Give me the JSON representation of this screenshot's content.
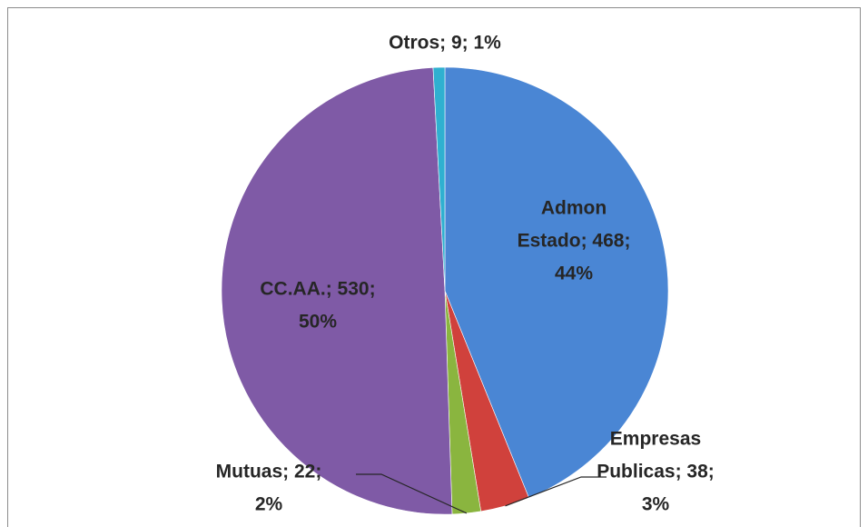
{
  "chart_data": {
    "type": "pie",
    "categories": [
      "Admon Estado",
      "Empresas Publicas",
      "Mutuas",
      "CC.AA.",
      "Otros"
    ],
    "values": [
      468,
      38,
      22,
      530,
      9
    ],
    "value_labels": [
      [
        "Admon",
        "Estado; 468;",
        "44%"
      ],
      [
        "Empresas",
        "Publicas; 38;",
        "3%"
      ],
      [
        "Mutuas; 22;",
        "2%"
      ],
      [
        "CC.AA.; 530;",
        "50%"
      ],
      [
        "Otros; 9; 1%"
      ]
    ],
    "colors": [
      "#4a86d4",
      "#d0413c",
      "#8ab53f",
      "#7f5aa6",
      "#2fb0d0"
    ]
  }
}
